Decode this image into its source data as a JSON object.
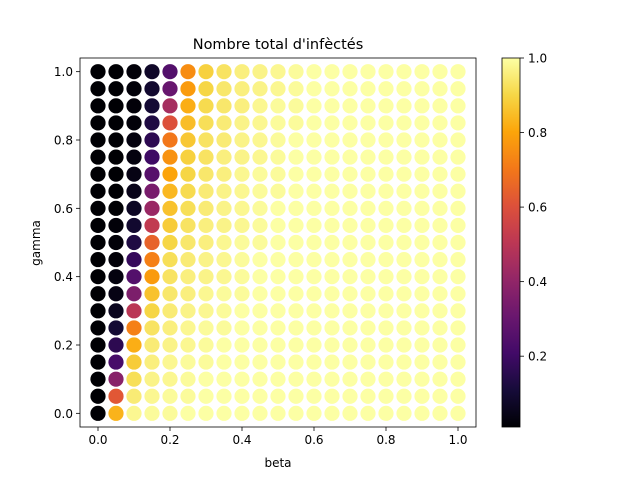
{
  "chart_data": {
    "type": "scatter",
    "title": "Nombre total d'infèctés",
    "xlabel": "beta",
    "ylabel": "gamma",
    "xlim": [
      -0.05,
      1.05
    ],
    "ylim": [
      -0.04,
      1.04
    ],
    "x_ticks": [
      0.0,
      0.2,
      0.4,
      0.6,
      0.8,
      1.0
    ],
    "x_tick_labels": [
      "0.0",
      "0.2",
      "0.4",
      "0.6",
      "0.8",
      "1.0"
    ],
    "y_ticks": [
      0.0,
      0.2,
      0.4,
      0.6,
      0.8,
      1.0
    ],
    "y_tick_labels": [
      "0.0",
      "0.2",
      "0.4",
      "0.6",
      "0.8",
      "1.0"
    ],
    "grid": false,
    "colormap": "inferno",
    "colorbar": {
      "range": [
        0.01,
        1.0
      ],
      "ticks": [
        0.2,
        0.4,
        0.6,
        0.8,
        1.0
      ],
      "tick_labels": [
        "0.2",
        "0.4",
        "0.6",
        "0.8",
        "1.0"
      ]
    },
    "beta_values": [
      0.0,
      0.05,
      0.1,
      0.15,
      0.2,
      0.25,
      0.3,
      0.35,
      0.4,
      0.45,
      0.5,
      0.55,
      0.6,
      0.65,
      0.7,
      0.75,
      0.8,
      0.85,
      0.9,
      0.95,
      1.0
    ],
    "gamma_values": [
      0.0,
      0.05,
      0.1,
      0.15,
      0.2,
      0.25,
      0.3,
      0.35,
      0.4,
      0.45,
      0.5,
      0.55,
      0.6,
      0.65,
      0.7,
      0.75,
      0.8,
      0.85,
      0.9,
      0.95,
      1.0
    ],
    "value_note_rows_by_gamma": "values[i][j]: i = gamma index (0..20), j = beta index (0..20)",
    "values": [
      [
        0.01,
        0.83,
        0.98,
        0.99,
        0.99,
        1.0,
        1.0,
        1.0,
        1.0,
        1.0,
        1.0,
        1.0,
        1.0,
        1.0,
        1.0,
        1.0,
        1.0,
        1.0,
        1.0,
        1.0,
        1.0
      ],
      [
        0.01,
        0.62,
        0.95,
        0.98,
        0.99,
        0.99,
        1.0,
        1.0,
        1.0,
        1.0,
        1.0,
        1.0,
        1.0,
        1.0,
        1.0,
        1.0,
        1.0,
        1.0,
        1.0,
        1.0,
        1.0
      ],
      [
        0.01,
        0.38,
        0.92,
        0.97,
        0.98,
        0.99,
        1.0,
        1.0,
        1.0,
        1.0,
        1.0,
        1.0,
        1.0,
        1.0,
        1.0,
        1.0,
        1.0,
        1.0,
        1.0,
        1.0,
        1.0
      ],
      [
        0.01,
        0.22,
        0.88,
        0.96,
        0.98,
        0.99,
        0.99,
        1.0,
        1.0,
        1.0,
        1.0,
        1.0,
        1.0,
        1.0,
        1.0,
        1.0,
        1.0,
        1.0,
        1.0,
        1.0,
        1.0
      ],
      [
        0.01,
        0.16,
        0.82,
        0.95,
        0.97,
        0.98,
        0.99,
        1.0,
        1.0,
        1.0,
        1.0,
        1.0,
        1.0,
        1.0,
        1.0,
        1.0,
        1.0,
        1.0,
        1.0,
        1.0,
        1.0
      ],
      [
        0.01,
        0.1,
        0.72,
        0.93,
        0.96,
        0.98,
        0.99,
        0.99,
        1.0,
        1.0,
        1.0,
        1.0,
        1.0,
        1.0,
        1.0,
        1.0,
        1.0,
        1.0,
        1.0,
        1.0,
        1.0
      ],
      [
        0.01,
        0.06,
        0.5,
        0.9,
        0.95,
        0.97,
        0.98,
        0.99,
        1.0,
        1.0,
        1.0,
        1.0,
        1.0,
        1.0,
        1.0,
        1.0,
        1.0,
        1.0,
        1.0,
        1.0,
        1.0
      ],
      [
        0.01,
        0.04,
        0.35,
        0.86,
        0.94,
        0.96,
        0.98,
        0.99,
        0.99,
        1.0,
        1.0,
        1.0,
        1.0,
        1.0,
        1.0,
        1.0,
        1.0,
        1.0,
        1.0,
        1.0,
        1.0
      ],
      [
        0.01,
        0.03,
        0.25,
        0.78,
        0.93,
        0.96,
        0.97,
        0.98,
        0.99,
        1.0,
        1.0,
        1.0,
        1.0,
        1.0,
        1.0,
        1.0,
        1.0,
        1.0,
        1.0,
        1.0,
        1.0
      ],
      [
        0.01,
        0.02,
        0.18,
        0.72,
        0.92,
        0.95,
        0.97,
        0.98,
        0.99,
        1.0,
        1.0,
        1.0,
        1.0,
        1.0,
        1.0,
        1.0,
        1.0,
        1.0,
        1.0,
        1.0,
        1.0
      ],
      [
        0.01,
        0.02,
        0.13,
        0.65,
        0.9,
        0.94,
        0.96,
        0.98,
        0.99,
        0.99,
        1.0,
        1.0,
        1.0,
        1.0,
        1.0,
        1.0,
        1.0,
        1.0,
        1.0,
        1.0,
        1.0
      ],
      [
        0.01,
        0.02,
        0.09,
        0.52,
        0.88,
        0.93,
        0.96,
        0.97,
        0.98,
        0.99,
        1.0,
        1.0,
        1.0,
        1.0,
        1.0,
        1.0,
        1.0,
        1.0,
        1.0,
        1.0,
        1.0
      ],
      [
        0.01,
        0.01,
        0.07,
        0.42,
        0.86,
        0.92,
        0.95,
        0.97,
        0.98,
        0.99,
        1.0,
        1.0,
        1.0,
        1.0,
        1.0,
        1.0,
        1.0,
        1.0,
        1.0,
        1.0,
        1.0
      ],
      [
        0.01,
        0.01,
        0.05,
        0.34,
        0.84,
        0.91,
        0.95,
        0.97,
        0.98,
        0.99,
        0.99,
        1.0,
        1.0,
        1.0,
        1.0,
        1.0,
        1.0,
        1.0,
        1.0,
        1.0,
        1.0
      ],
      [
        0.01,
        0.01,
        0.04,
        0.26,
        0.8,
        0.9,
        0.94,
        0.96,
        0.98,
        0.99,
        0.99,
        1.0,
        1.0,
        1.0,
        1.0,
        1.0,
        1.0,
        1.0,
        1.0,
        1.0,
        1.0
      ],
      [
        0.01,
        0.01,
        0.03,
        0.2,
        0.76,
        0.89,
        0.93,
        0.96,
        0.97,
        0.98,
        0.99,
        1.0,
        1.0,
        1.0,
        1.0,
        1.0,
        1.0,
        1.0,
        1.0,
        1.0,
        1.0
      ],
      [
        0.01,
        0.01,
        0.03,
        0.16,
        0.7,
        0.87,
        0.93,
        0.95,
        0.97,
        0.98,
        0.99,
        1.0,
        1.0,
        1.0,
        1.0,
        1.0,
        1.0,
        1.0,
        1.0,
        1.0,
        1.0
      ],
      [
        0.01,
        0.01,
        0.02,
        0.13,
        0.6,
        0.85,
        0.92,
        0.95,
        0.97,
        0.98,
        0.99,
        0.99,
        1.0,
        1.0,
        1.0,
        1.0,
        1.0,
        1.0,
        1.0,
        1.0,
        1.0
      ],
      [
        0.01,
        0.01,
        0.02,
        0.1,
        0.45,
        0.82,
        0.91,
        0.94,
        0.96,
        0.98,
        0.99,
        0.99,
        1.0,
        1.0,
        1.0,
        1.0,
        1.0,
        1.0,
        1.0,
        1.0,
        1.0
      ],
      [
        0.01,
        0.01,
        0.02,
        0.09,
        0.3,
        0.78,
        0.9,
        0.94,
        0.96,
        0.97,
        0.98,
        0.99,
        1.0,
        1.0,
        1.0,
        1.0,
        1.0,
        1.0,
        1.0,
        1.0,
        1.0
      ],
      [
        0.01,
        0.01,
        0.02,
        0.08,
        0.25,
        0.75,
        0.89,
        0.93,
        0.96,
        0.97,
        0.98,
        0.99,
        1.0,
        1.0,
        1.0,
        1.0,
        1.0,
        1.0,
        1.0,
        1.0,
        1.0
      ]
    ]
  }
}
